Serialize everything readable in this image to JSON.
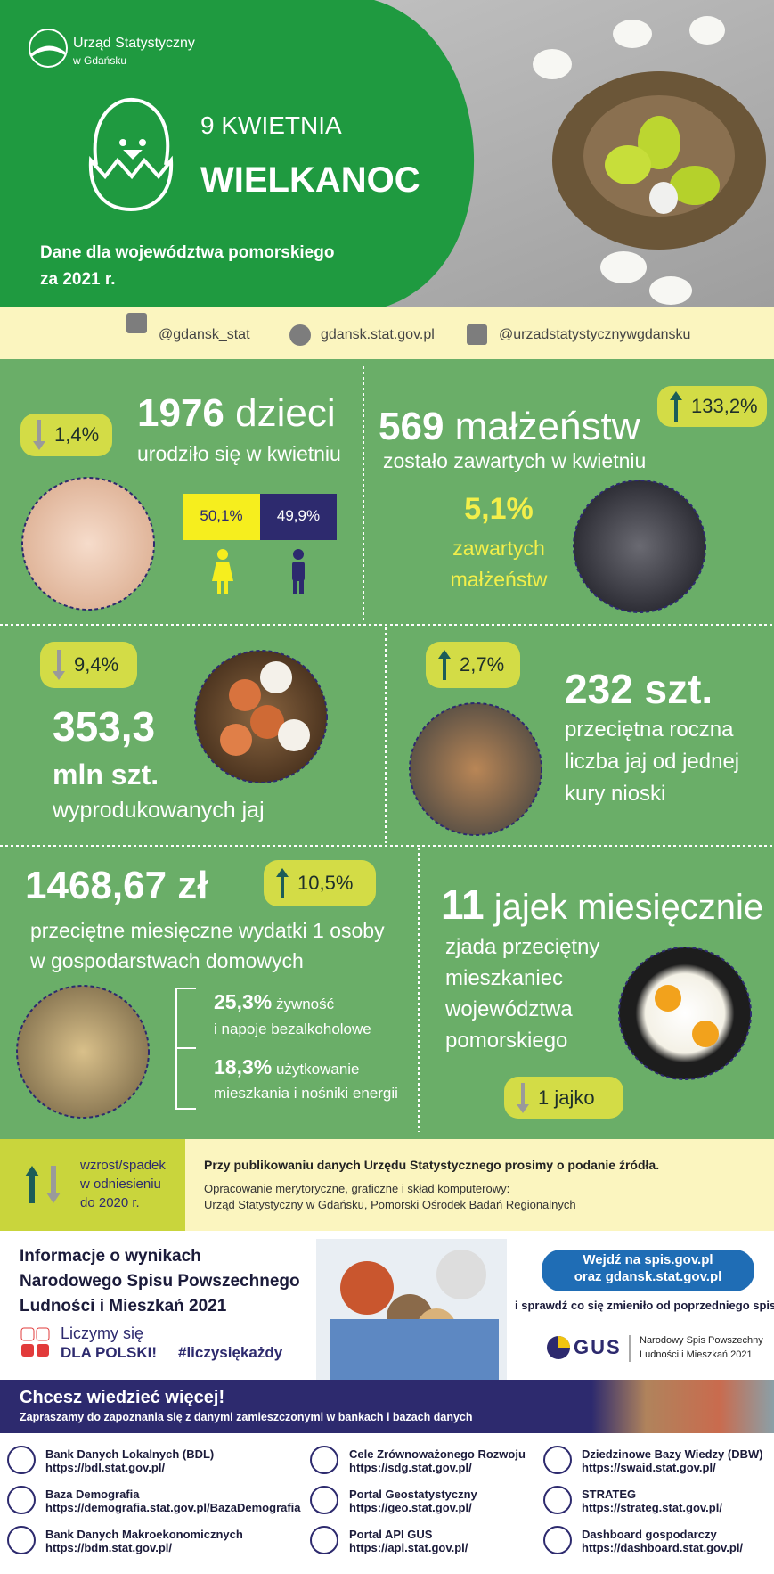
{
  "header": {
    "org_line1": "Urząd Statystyczny",
    "org_line2": "w Gdańsku",
    "date": "9 KWIETNIA",
    "title": "WIELKANOC",
    "subtitle_lines": [
      "Dane dla województwa pomorskiego",
      "za 2021 r."
    ]
  },
  "social": {
    "twitter": "@gdansk_stat",
    "website": "gdansk.stat.gov.pl",
    "facebook": "@urzadstatystycznywgdansku"
  },
  "births": {
    "change": "1,4%",
    "number": "1976",
    "unit": "dzieci",
    "description": "urodziło się w kwietniu",
    "female": "50,1%",
    "male": "49,9%"
  },
  "marriages": {
    "number": "569",
    "unit": "małżeństw",
    "change": "133,2%",
    "description": "zostało zawartych w kwietniu",
    "share": "5,1%",
    "share_lines": [
      "zawartych",
      "małżeństw"
    ]
  },
  "egg_production": {
    "change": "9,4%",
    "number": "353,3",
    "unit": "mln szt.",
    "description": "wyprodukowanych jaj"
  },
  "eggs_per_hen": {
    "change": "2,7%",
    "number": "232 szt.",
    "description_lines": [
      "przeciętna roczna",
      "liczba jaj od jednej",
      "kury nioski"
    ]
  },
  "expenses": {
    "number": "1468,67 zł",
    "change": "10,5%",
    "description_lines": [
      "przeciętne miesięczne wydatki 1 osoby",
      "w gospodarstwach domowych"
    ],
    "items": [
      {
        "value": "25,3%",
        "label_lines": [
          "żywność",
          "i napoje bezalkoholowe"
        ]
      },
      {
        "value": "18,3%",
        "label_lines": [
          "użytkowanie",
          "mieszkania i nośniki energii"
        ]
      }
    ]
  },
  "eggs_eaten": {
    "number": "11",
    "unit": "jajek miesięcznie",
    "description_lines": [
      "zjada przeciętny",
      "mieszkaniec",
      "województwa",
      "pomorskiego"
    ],
    "change": "1 jajko"
  },
  "legend": {
    "lines": [
      "wzrost/spadek",
      "w odniesieniu",
      "do 2020 r."
    ]
  },
  "source": {
    "note": "Przy publikowaniu danych Urzędu Statystycznego prosimy o podanie źródła.",
    "credit_lines": [
      "Opracowanie merytoryczne, graficzne i skład komputerowy:",
      "Urząd Statystyczny w Gdańsku, Pomorski Ośrodek Badań Regionalnych"
    ]
  },
  "census": {
    "title_lines": [
      "Informacje o wynikach",
      "Narodowego Spisu Powszechnego",
      "Ludności i Mieszkań 2021"
    ],
    "slogan_lines": [
      "Liczymy się",
      "DLA POLSKI!"
    ],
    "hashtag": "#liczysiękażdy",
    "button_lines": [
      "Wejdź na spis.gov.pl",
      "oraz gdansk.stat.gov.pl"
    ],
    "note": "i sprawdź co się zmieniło od poprzedniego spisu",
    "gus": "GUS",
    "gus_lines": [
      "Narodowy Spis Powszechny",
      "Ludności i Mieszkań 2021"
    ]
  },
  "more": {
    "title": "Chcesz wiedzieć więcej!",
    "subtitle": "Zapraszamy do zapoznania się z danymi zamieszczonymi w bankach i bazach danych"
  },
  "links": [
    {
      "name": "Bank Danych Lokalnych (BDL)",
      "url": "https://bdl.stat.gov.pl/"
    },
    {
      "name": "Baza Demografia",
      "url": "https://demografia.stat.gov.pl/BazaDemografia"
    },
    {
      "name": "Bank Danych Makroekonomicznych",
      "url": "https://bdm.stat.gov.pl/"
    },
    {
      "name": "Cele Zrównoważonego Rozwoju",
      "url": "https://sdg.stat.gov.pl/"
    },
    {
      "name": "Portal Geostatystyczny",
      "url": "https://geo.stat.gov.pl/"
    },
    {
      "name": "Portal API GUS",
      "url": "https://api.stat.gov.pl/"
    },
    {
      "name": "Dziedzinowe Bazy Wiedzy (DBW)",
      "url": "https://swaid.stat.gov.pl/"
    },
    {
      "name": "STRATEG",
      "url": "https://strateg.stat.gov.pl/"
    },
    {
      "name": "Dashboard gospodarczy",
      "url": "https://dashboard.stat.gov.pl/"
    }
  ]
}
